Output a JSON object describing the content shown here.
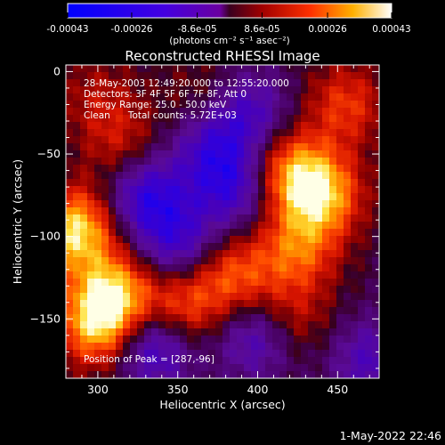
{
  "colorbar": {
    "tick_labels": [
      "-0.00043",
      "-0.00026",
      "-8.6e-05",
      "8.6e-05",
      "0.00026",
      "0.00043"
    ],
    "tick_values": [
      -0.00043,
      -0.00026,
      -8.6e-05,
      8.6e-05,
      0.00026,
      0.00043
    ],
    "range": [
      -0.00043,
      0.00043
    ],
    "unit_label": "(photons cm⁻² s⁻¹ asec⁻²)"
  },
  "chart_data": {
    "type": "heatmap",
    "title": "Reconstructed RHESSI Image",
    "xlabel": "Heliocentric X (arcsec)",
    "ylabel": "Heliocentric Y (arcsec)",
    "xlim": [
      280,
      476
    ],
    "ylim": [
      -186,
      4
    ],
    "x_ticks": [
      300,
      350,
      400,
      450
    ],
    "y_ticks": [
      0,
      -50,
      -100,
      -150
    ],
    "x_tick_labels": [
      "300",
      "350",
      "400",
      "450"
    ],
    "y_tick_labels": [
      "0",
      "−50",
      "−100",
      "−150"
    ],
    "grid": false,
    "colormap": "blue-purple-red-yellow-white",
    "grid_size": [
      44,
      44
    ],
    "annotations": [
      "28-May-2003 12:49:20.000 to 12:55:20.000",
      "Detectors: 3F 4F 5F 6F 7F 8F, Att 0",
      "Energy Range: 25.0 - 50.0 keV",
      "Clean      Total counts: 5.72E+03",
      "Position of Peak = [287,-96]"
    ],
    "peak": [
      287,
      -96
    ],
    "features": [
      {
        "x": 286,
        "y": -96,
        "value": 0.00043
      },
      {
        "x": 310,
        "y": -135,
        "value": 0.00036
      },
      {
        "x": 300,
        "y": -155,
        "value": 0.00034
      },
      {
        "x": 352,
        "y": -143,
        "value": 0.00028
      },
      {
        "x": 385,
        "y": -124,
        "value": 0.00026
      },
      {
        "x": 440,
        "y": -75,
        "value": 0.00036
      },
      {
        "x": 420,
        "y": -60,
        "value": 0.0003
      },
      {
        "x": 425,
        "y": -108,
        "value": 0.00026
      },
      {
        "x": 455,
        "y": -20,
        "value": 0.00022
      },
      {
        "x": 420,
        "y": -150,
        "value": 0.00018
      },
      {
        "x": 315,
        "y": -45,
        "value": 0.00016
      },
      {
        "x": 300,
        "y": -15,
        "value": 0.00012
      },
      {
        "x": 365,
        "y": -15,
        "value": 0.0001
      },
      {
        "x": 330,
        "y": -75,
        "value": -0.0003
      },
      {
        "x": 350,
        "y": -105,
        "value": -0.00025
      },
      {
        "x": 335,
        "y": -165,
        "value": -0.00032
      },
      {
        "x": 395,
        "y": -25,
        "value": -0.00022
      },
      {
        "x": 385,
        "y": -70,
        "value": -0.00026
      },
      {
        "x": 370,
        "y": -45,
        "value": -0.0002
      },
      {
        "x": 400,
        "y": -160,
        "value": -0.00025
      },
      {
        "x": 470,
        "y": -175,
        "value": -0.0002
      }
    ]
  },
  "footer": {
    "timestamp": "1-May-2022 22:46"
  }
}
